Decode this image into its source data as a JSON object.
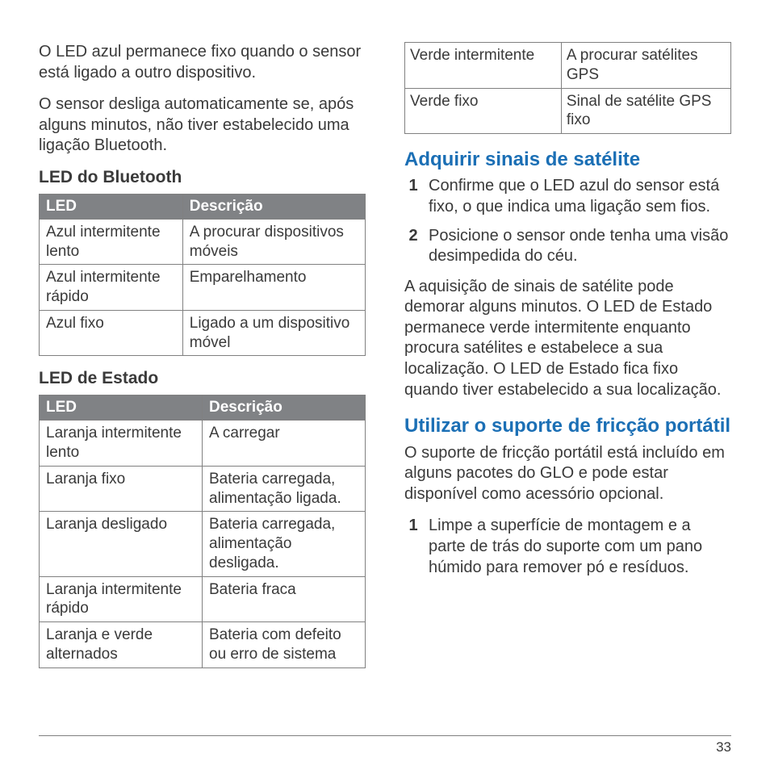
{
  "page_number": "33",
  "colors": {
    "text": "#3a3a3a",
    "heading_blue": "#1b6fb5",
    "table_header_bg": "#808285",
    "table_header_text": "#ffffff",
    "table_border": "#808080",
    "footer_rule": "#808080",
    "background": "#ffffff"
  },
  "typography": {
    "body_fontsize": 20,
    "subhead_fontsize": 21,
    "section_fontsize": 24,
    "table_fontsize": 19,
    "pagenum_fontsize": 17,
    "font_family": "Arial"
  },
  "left": {
    "para1": "O LED azul permanece fixo quando o sensor está ligado a outro dispositivo.",
    "para2": "O sensor desliga automaticamente se, após alguns minutos, não tiver estabelecido uma ligação Bluetooth.",
    "bt_heading": "LED do Bluetooth",
    "bt_table": {
      "header": [
        "LED",
        "Descrição"
      ],
      "rows": [
        [
          "Azul intermitente lento",
          "A procurar dispositivos móveis"
        ],
        [
          "Azul intermitente rápido",
          "Emparelhamento"
        ],
        [
          "Azul fixo",
          "Ligado a um dispositivo móvel"
        ]
      ],
      "col_widths_pct": [
        44,
        56
      ]
    },
    "state_heading": "LED de Estado",
    "state_table": {
      "header": [
        "LED",
        "Descrição"
      ],
      "rows": [
        [
          "Laranja intermitente lento",
          "A carregar"
        ],
        [
          "Laranja fixo",
          "Bateria carregada, alimentação ligada."
        ],
        [
          "Laranja desligado",
          "Bateria carregada, alimentação desligada."
        ],
        [
          "Laranja intermitente rápido",
          "Bateria fraca"
        ],
        [
          "Laranja e verde alternados",
          "Bateria com defeito ou erro de sistema"
        ]
      ],
      "col_widths_pct": [
        50,
        50
      ]
    }
  },
  "right": {
    "gps_table": {
      "rows": [
        [
          "Verde intermitente",
          "A procurar satélites GPS"
        ],
        [
          "Verde fixo",
          "Sinal de satélite GPS fixo"
        ]
      ],
      "col_widths_pct": [
        48,
        52
      ]
    },
    "sat_heading": "Adquirir sinais de satélite",
    "sat_steps": [
      "Confirme que o LED azul do sensor está fixo, o que indica uma ligação sem fios.",
      "Posicione o sensor onde tenha uma visão desimpedida do céu."
    ],
    "sat_para": "A aquisição de sinais de satélite pode demorar alguns minutos. O LED de Estado permanece verde intermitente enquanto procura satélites e estabelece a sua localização. O LED de Estado fica fixo quando tiver estabelecido a sua localização.",
    "mount_heading": "Utilizar o suporte de fricção portátil",
    "mount_para": "O suporte de fricção portátil está incluído em alguns pacotes do GLO e pode estar disponível como acessório opcional.",
    "mount_steps": [
      "Limpe a superfície de montagem e a parte de trás do suporte com um pano húmido para remover pó e resíduos."
    ]
  }
}
